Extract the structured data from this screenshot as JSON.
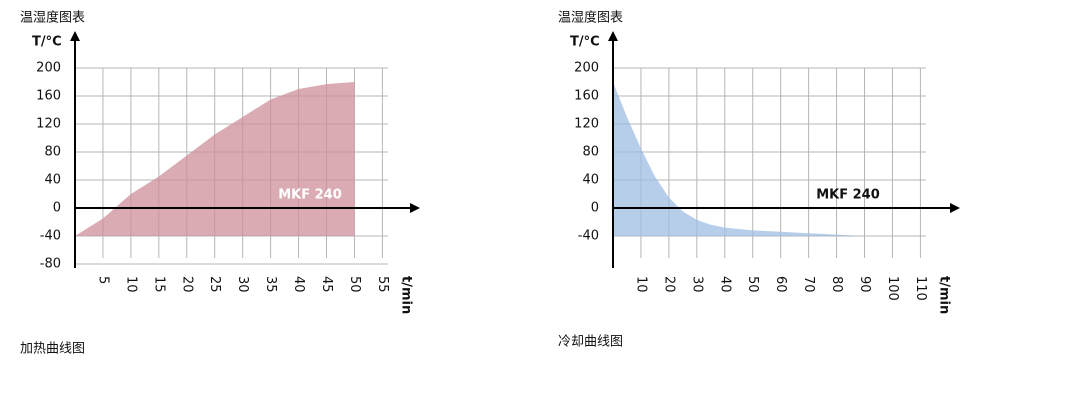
{
  "chart_data": [
    {
      "type": "area",
      "title": "温湿度图表",
      "y_label": "T/°C",
      "x_label": "t/min",
      "annotation": "MKF 240",
      "annotation_color": "#ffffff",
      "caption": "加热曲线图",
      "color": "#cf8f99",
      "x": [
        0,
        5,
        10,
        15,
        20,
        25,
        30,
        35,
        40,
        45,
        50
      ],
      "values": [
        -40,
        -15,
        20,
        45,
        75,
        105,
        130,
        155,
        170,
        177,
        180
      ],
      "xlim": [
        0,
        56
      ],
      "ylim": [
        -80,
        200
      ],
      "xticks": [
        5,
        10,
        15,
        20,
        25,
        30,
        35,
        40,
        45,
        50,
        55
      ],
      "yticks": [
        200,
        160,
        120,
        80,
        40,
        0,
        -40,
        -80
      ],
      "grid": true
    },
    {
      "type": "area",
      "title": "温湿度图表",
      "y_label": "T/°C",
      "x_label": "t/min",
      "annotation": "MKF 240",
      "annotation_color": "#111111",
      "caption": "冷却曲线图",
      "color": "#9dbde3",
      "x": [
        0,
        5,
        10,
        15,
        20,
        25,
        30,
        35,
        40,
        50,
        60,
        70,
        80,
        90
      ],
      "values": [
        180,
        130,
        85,
        45,
        15,
        -5,
        -17,
        -24,
        -28,
        -32,
        -34,
        -36,
        -38,
        -40
      ],
      "xlim": [
        0,
        112
      ],
      "ylim": [
        -80,
        200
      ],
      "xticks": [
        10,
        20,
        30,
        40,
        50,
        60,
        70,
        80,
        90,
        100,
        110
      ],
      "yticks": [
        200,
        160,
        120,
        80,
        40,
        0,
        -40
      ],
      "grid": true
    }
  ]
}
